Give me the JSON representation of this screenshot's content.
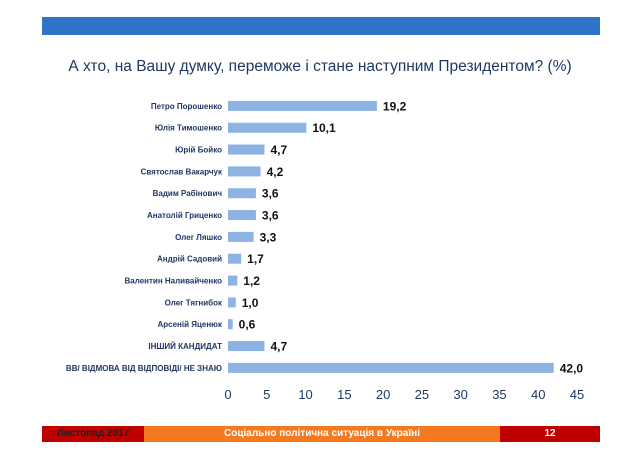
{
  "colors": {
    "header_bar": "#2e74c8",
    "bar": "#8db3e2",
    "footer_left": "#c00000",
    "footer_mid": "#f47a21",
    "footer_right": "#c00000",
    "title": "#1f3864",
    "axis_text": "#1f3864"
  },
  "footer": {
    "left": "Листопад 2017",
    "center": "Соціально політична ситуація в Україні",
    "page": "12"
  },
  "chart_data": {
    "type": "bar",
    "orientation": "horizontal",
    "title": "А хто, на Вашу думку, переможе і стане наступним Президентом? (%)",
    "categories": [
      "Петро Порошенко",
      "Юлія Тимошенко",
      "Юрій Бойко",
      "Святослав Вакарчук",
      "Вадим Рабінович",
      "Анатолій Гриценко",
      "Олег Ляшко",
      "Андрій Садовий",
      "Валентин Наливайченко",
      "Олег Тягнибок",
      "Арсеній Яценюк",
      "ІНШИЙ КАНДИДАТ",
      "ВВ/ ВІДМОВА ВІД ВІДПОВІДІ/ НЕ ЗНАЮ"
    ],
    "values": [
      19.2,
      10.1,
      4.7,
      4.2,
      3.6,
      3.6,
      3.3,
      1.7,
      1.2,
      1.0,
      0.6,
      4.7,
      42.0
    ],
    "value_labels": [
      "19,2",
      "10,1",
      "4,7",
      "4,2",
      "3,6",
      "3,6",
      "3,3",
      "1,7",
      "1,2",
      "1,0",
      "0,6",
      "4,7",
      "42,0"
    ],
    "xlim": [
      0,
      45
    ],
    "xticks": [
      0,
      5,
      10,
      15,
      20,
      25,
      30,
      35,
      40,
      45
    ],
    "grid": false
  }
}
